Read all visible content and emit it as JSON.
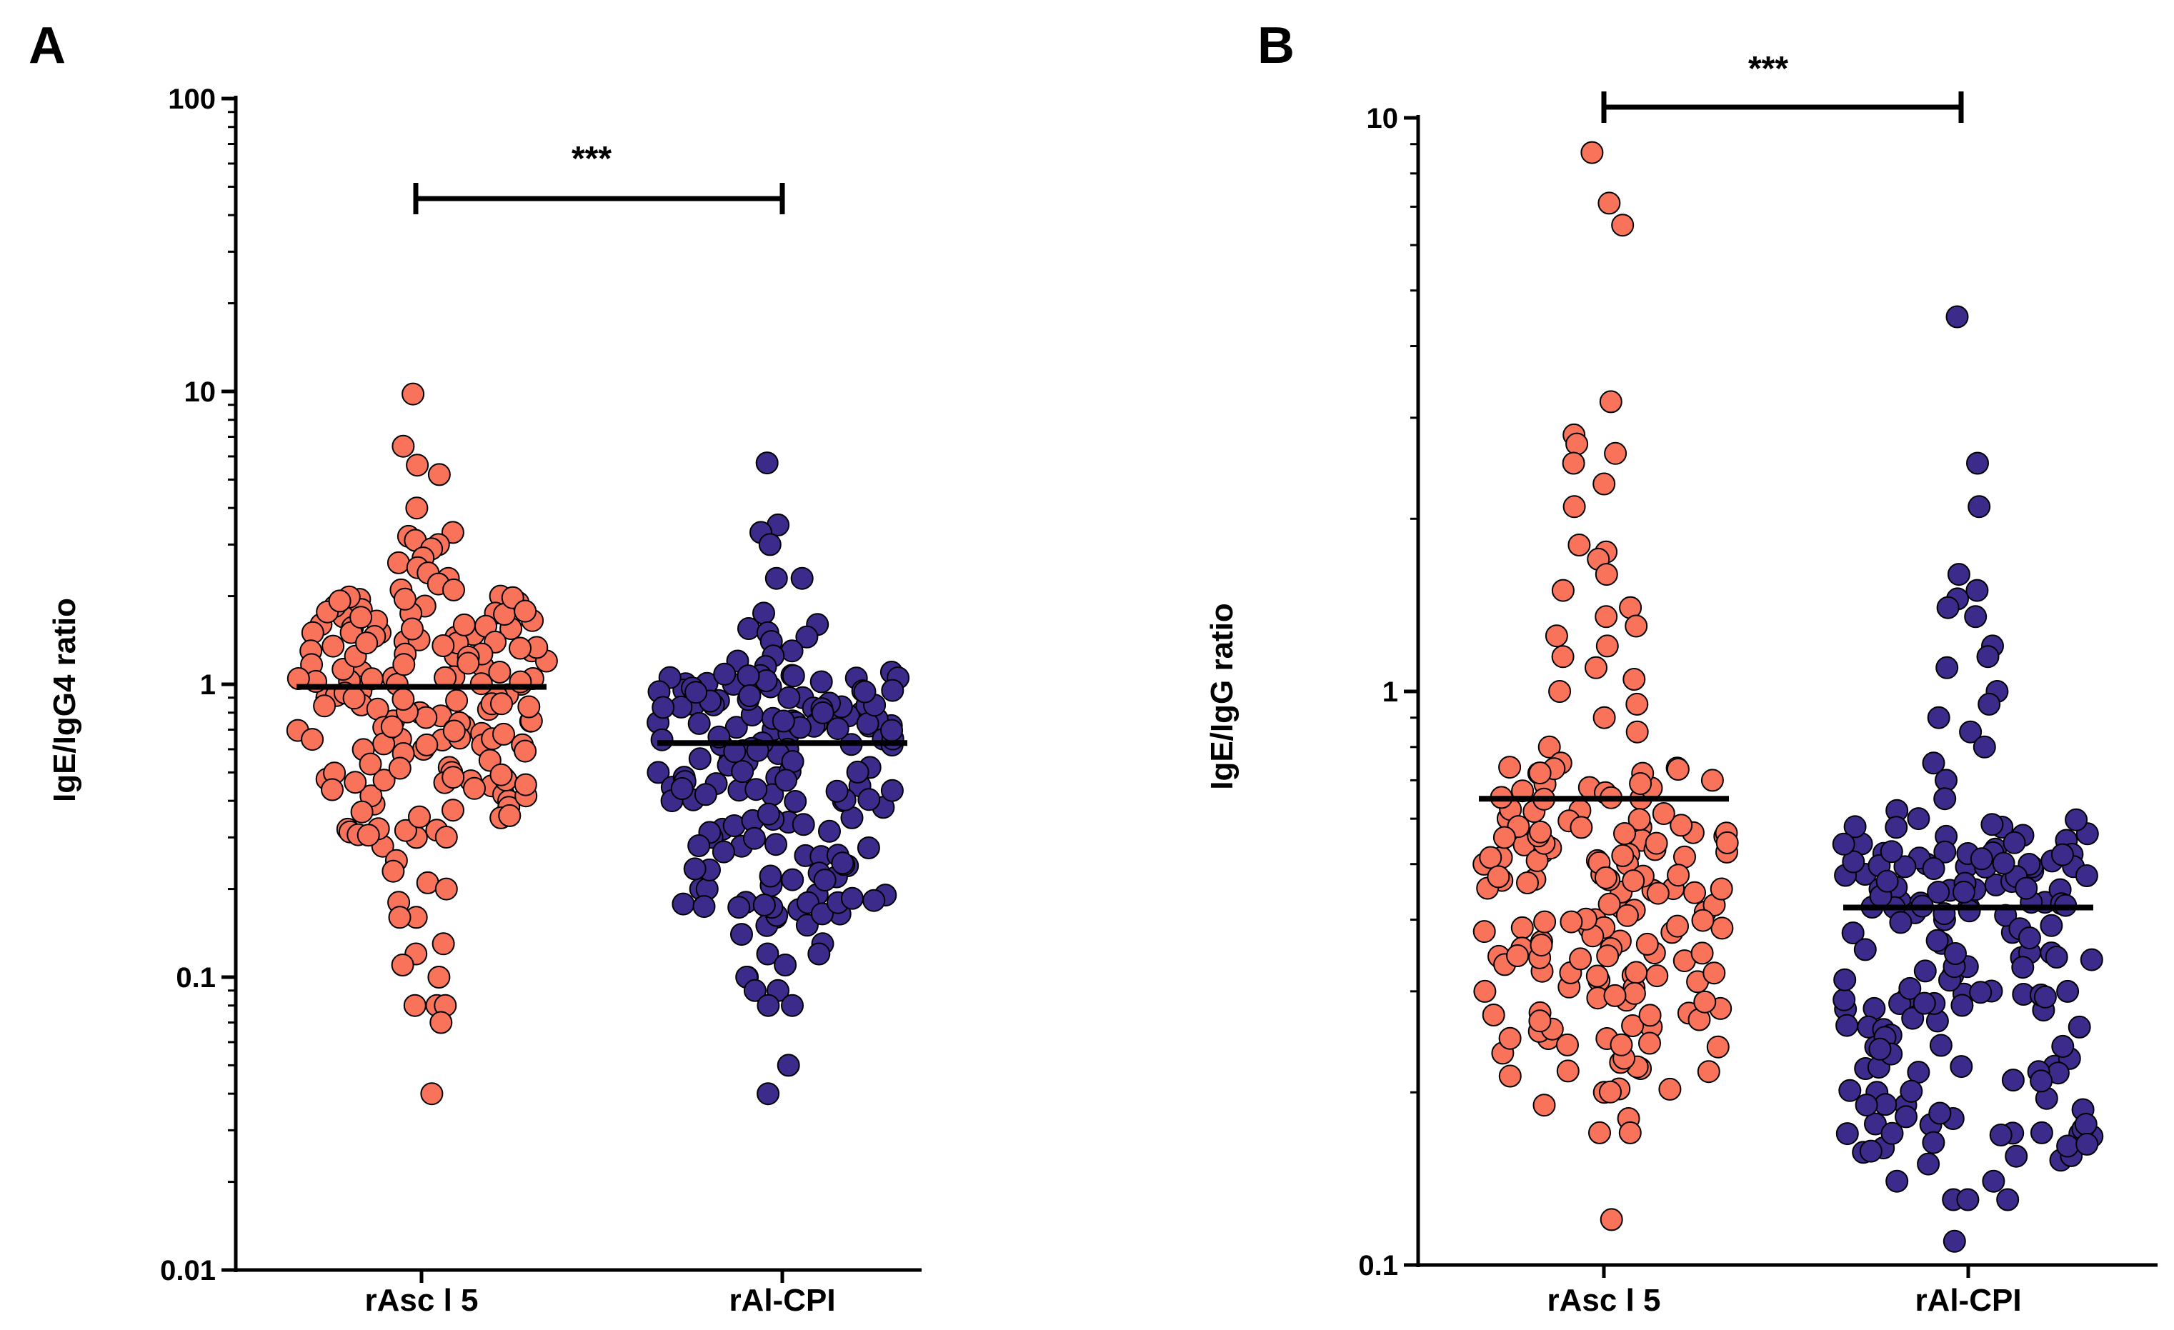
{
  "chart_data": [
    {
      "panel": "A",
      "type": "scatter",
      "subtype": "dot-plot",
      "ylabel": "IgE/IgG4 ratio",
      "yscale": "log",
      "ylim": [
        0.01,
        100
      ],
      "ytick_values": [
        0.01,
        0.1,
        1,
        10,
        100
      ],
      "ytick_labels": [
        "0.01",
        "0.1",
        "1",
        "10",
        "100"
      ],
      "categories": [
        "rAsc l 5",
        "rAl-CPI"
      ],
      "significance": "***",
      "series": [
        {
          "name": "rAsc l 5",
          "color": "#F9735B",
          "median": 0.98,
          "values": [
            9.8,
            6.5,
            5.6,
            5.2,
            4.0,
            3.3,
            3.2,
            3.1,
            3.0,
            2.9,
            2.7,
            2.6,
            2.5,
            2.4,
            2.3,
            2.2,
            2.1,
            2.1,
            2.0,
            1.95,
            1.9,
            1.85,
            1.8,
            1.75,
            1.7,
            1.65,
            1.6,
            1.55,
            1.5,
            1.5,
            1.45,
            1.4,
            1.35,
            1.3,
            1.3,
            1.25,
            1.2,
            1.2,
            1.15,
            1.1,
            1.1,
            1.05,
            1.0,
            1.0,
            0.98,
            0.95,
            0.92,
            0.9,
            0.88,
            0.85,
            0.82,
            0.8,
            0.78,
            0.75,
            0.72,
            0.7,
            0.68,
            0.65,
            0.62,
            0.6,
            0.58,
            0.55,
            0.52,
            0.5,
            0.48,
            0.45,
            0.42,
            0.4,
            0.38,
            0.35,
            0.32,
            0.3,
            0.28,
            0.25,
            0.23,
            0.21,
            0.2,
            0.18,
            0.16,
            0.16,
            0.13,
            0.12,
            0.11,
            0.1,
            0.08,
            0.08,
            0.08,
            0.07,
            0.04
          ],
          "dense_band": [
            {
              "low": 0.6,
              "high": 2.0,
              "count": 70
            },
            {
              "low": 0.3,
              "high": 0.6,
              "count": 30
            }
          ]
        },
        {
          "name": "rAl-CPI",
          "color": "#3D2B8C",
          "median": 0.63,
          "values": [
            5.7,
            3.5,
            3.3,
            3.0,
            2.3,
            2.3,
            1.75,
            1.6,
            1.55,
            1.5,
            1.45,
            1.4,
            1.3,
            1.25,
            1.2,
            1.15,
            1.1,
            1.05,
            1.0,
            0.98,
            0.95,
            0.9,
            0.88,
            0.85,
            0.8,
            0.78,
            0.75,
            0.72,
            0.7,
            0.68,
            0.65,
            0.62,
            0.6,
            0.58,
            0.55,
            0.52,
            0.5,
            0.48,
            0.45,
            0.42,
            0.4,
            0.38,
            0.35,
            0.32,
            0.3,
            0.28,
            0.26,
            0.24,
            0.22,
            0.2,
            0.2,
            0.18,
            0.17,
            0.16,
            0.15,
            0.14,
            0.13,
            0.12,
            0.12,
            0.11,
            0.1,
            0.1,
            0.09,
            0.09,
            0.08,
            0.08,
            0.05,
            0.04
          ],
          "dense_band": [
            {
              "low": 0.4,
              "high": 1.1,
              "count": 80
            },
            {
              "low": 0.15,
              "high": 0.4,
              "count": 40
            }
          ]
        }
      ]
    },
    {
      "panel": "B",
      "type": "scatter",
      "subtype": "dot-plot",
      "ylabel": "IgE/IgG ratio",
      "yscale": "log",
      "ylim": [
        0.1,
        10
      ],
      "ytick_values": [
        0.1,
        1,
        10
      ],
      "ytick_labels": [
        "0.1",
        "1",
        "10"
      ],
      "categories": [
        "rAsc l 5",
        "rAl-CPI"
      ],
      "significance": "***",
      "series": [
        {
          "name": "rAsc l 5",
          "color": "#F9735B",
          "median": 0.65,
          "values": [
            8.7,
            7.1,
            6.5,
            3.2,
            2.8,
            2.7,
            2.6,
            2.5,
            2.3,
            2.1,
            1.8,
            1.75,
            1.7,
            1.6,
            1.5,
            1.4,
            1.35,
            1.3,
            1.25,
            1.2,
            1.15,
            1.1,
            1.05,
            1.0,
            0.95,
            0.9,
            0.85,
            0.8,
            0.75,
            0.72,
            0.7,
            0.68,
            0.65,
            0.62,
            0.6,
            0.58,
            0.55,
            0.52,
            0.5,
            0.48,
            0.45,
            0.42,
            0.4,
            0.38,
            0.35,
            0.32,
            0.3,
            0.28,
            0.26,
            0.24,
            0.22,
            0.2,
            0.19,
            0.18,
            0.17,
            0.17,
            0.12
          ],
          "dense_band": [
            {
              "low": 0.3,
              "high": 0.75,
              "count": 100
            },
            {
              "low": 0.2,
              "high": 0.3,
              "count": 30
            }
          ]
        },
        {
          "name": "rAl-CPI",
          "color": "#3D2B8C",
          "median": 0.42,
          "values": [
            4.5,
            2.5,
            2.1,
            1.6,
            1.5,
            1.45,
            1.4,
            1.35,
            1.2,
            1.15,
            1.1,
            1.0,
            0.95,
            0.9,
            0.85,
            0.8,
            0.75,
            0.7,
            0.65,
            0.62,
            0.6,
            0.58,
            0.55,
            0.52,
            0.5,
            0.48,
            0.45,
            0.42,
            0.4,
            0.38,
            0.35,
            0.32,
            0.3,
            0.28,
            0.26,
            0.24,
            0.22,
            0.2,
            0.19,
            0.18,
            0.17,
            0.16,
            0.15,
            0.14,
            0.14,
            0.13,
            0.13,
            0.13,
            0.11
          ],
          "dense_band": [
            {
              "low": 0.25,
              "high": 0.6,
              "count": 100
            },
            {
              "low": 0.15,
              "high": 0.25,
              "count": 40
            }
          ]
        }
      ]
    }
  ]
}
